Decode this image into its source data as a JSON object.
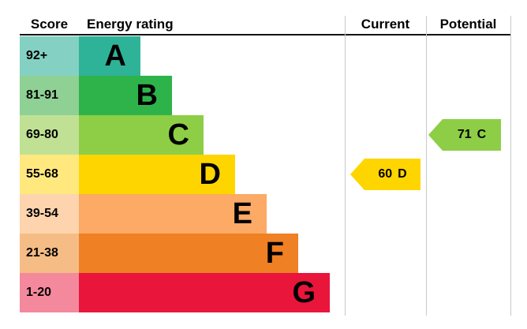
{
  "header": {
    "score": "Score",
    "energy_rating": "Energy rating",
    "current": "Current",
    "potential": "Potential"
  },
  "bands": [
    {
      "letter": "A",
      "range": "92+",
      "color": "#2eb398",
      "tint": "#84d1c3"
    },
    {
      "letter": "B",
      "range": "81-91",
      "color": "#2eb34b",
      "tint": "#8fd095"
    },
    {
      "letter": "C",
      "range": "69-80",
      "color": "#8dce46",
      "tint": "#c0e194"
    },
    {
      "letter": "D",
      "range": "55-68",
      "color": "#ffd500",
      "tint": "#ffe97f"
    },
    {
      "letter": "E",
      "range": "39-54",
      "color": "#fcaa65",
      "tint": "#fdd4ad"
    },
    {
      "letter": "F",
      "range": "21-38",
      "color": "#ef8023",
      "tint": "#f6bc85"
    },
    {
      "letter": "G",
      "range": "1-20",
      "color": "#e9153b",
      "tint": "#f4899d"
    }
  ],
  "current": {
    "value": "60",
    "band": "D",
    "color": "#ffd500"
  },
  "potential": {
    "value": "71",
    "band": "C",
    "color": "#8dce46"
  },
  "chart_data": {
    "type": "bar",
    "title": "Energy rating",
    "categories": [
      "A",
      "B",
      "C",
      "D",
      "E",
      "F",
      "G"
    ],
    "score_ranges": [
      "92+",
      "81-91",
      "69-80",
      "55-68",
      "39-54",
      "21-38",
      "1-20"
    ],
    "values": [
      78,
      118,
      158,
      198,
      238,
      278,
      318
    ],
    "colors": [
      "#2eb398",
      "#2eb34b",
      "#8dce46",
      "#ffd500",
      "#fcaa65",
      "#ef8023",
      "#e9153b"
    ],
    "columns": [
      "Score",
      "Energy rating",
      "Current",
      "Potential"
    ],
    "current": {
      "score": 60,
      "band": "D"
    },
    "potential": {
      "score": 71,
      "band": "C"
    },
    "legend": "off",
    "grid": "off"
  }
}
